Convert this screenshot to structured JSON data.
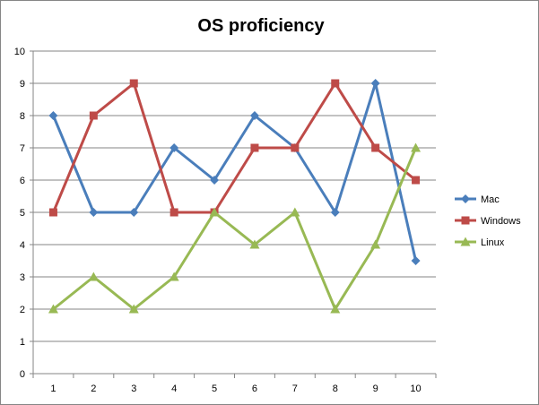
{
  "chart_data": {
    "type": "line",
    "title": "OS proficiency",
    "xlabel": "",
    "ylabel": "",
    "categories": [
      "1",
      "2",
      "3",
      "4",
      "5",
      "6",
      "7",
      "8",
      "9",
      "10"
    ],
    "ylim": [
      0,
      10
    ],
    "yticks": [
      "0",
      "1",
      "2",
      "3",
      "4",
      "5",
      "6",
      "7",
      "8",
      "9",
      "10"
    ],
    "grid": "horizontal",
    "legend": "right",
    "series": [
      {
        "name": "Mac",
        "color": "#4a7ebb",
        "marker": "diamond",
        "values": [
          8,
          5,
          5,
          7,
          6,
          8,
          7,
          5,
          9,
          3.5
        ]
      },
      {
        "name": "Windows",
        "color": "#be4b48",
        "marker": "square",
        "values": [
          5,
          8,
          9,
          5,
          5,
          7,
          7,
          9,
          7,
          6
        ]
      },
      {
        "name": "Linux",
        "color": "#98b954",
        "marker": "triangle",
        "values": [
          2,
          3,
          2,
          3,
          5,
          4,
          5,
          2,
          4,
          7
        ]
      }
    ]
  }
}
